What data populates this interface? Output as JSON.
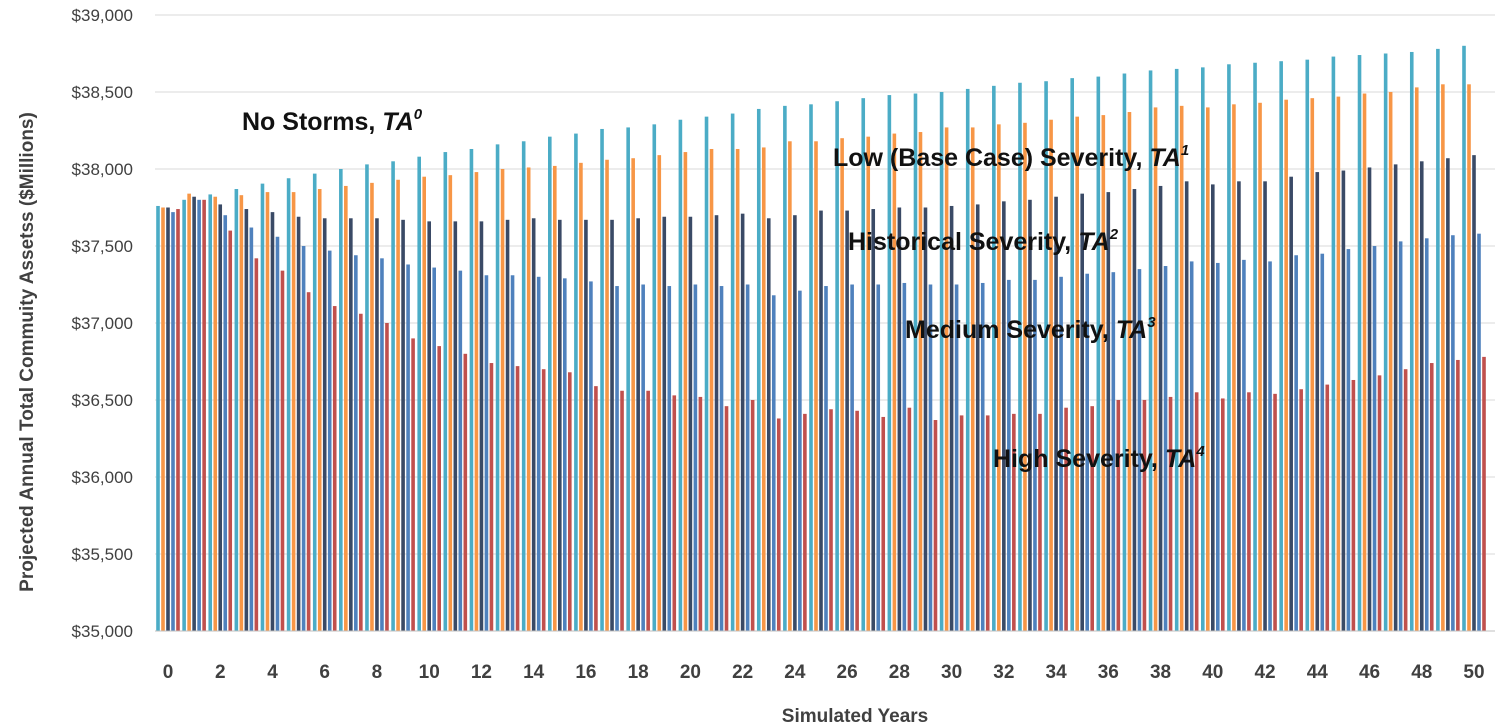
{
  "chart_data": {
    "type": "bar",
    "ylabel": "Projected Annual Total Commuity Assetss ($Millions)",
    "xlabel": "Simulated Years",
    "ylim": [
      35000,
      39000
    ],
    "yticks": [
      "$35,000",
      "$35,500",
      "$36,000",
      "$36,500",
      "$37,000",
      "$37,500",
      "$38,000",
      "$38,500",
      "$39,000"
    ],
    "ytick_values": [
      35000,
      35500,
      36000,
      36500,
      37000,
      37500,
      38000,
      38500,
      39000
    ],
    "x": [
      0,
      1,
      2,
      3,
      4,
      5,
      6,
      7,
      8,
      9,
      10,
      11,
      12,
      13,
      14,
      15,
      16,
      17,
      18,
      19,
      20,
      21,
      22,
      23,
      24,
      25,
      26,
      27,
      28,
      29,
      30,
      31,
      32,
      33,
      34,
      35,
      36,
      37,
      38,
      39,
      40,
      41,
      42,
      43,
      44,
      45,
      46,
      47,
      48,
      49,
      50
    ],
    "xtick_labels": [
      "0",
      "2",
      "4",
      "6",
      "8",
      "10",
      "12",
      "14",
      "16",
      "18",
      "20",
      "22",
      "24",
      "26",
      "28",
      "30",
      "32",
      "34",
      "36",
      "38",
      "40",
      "42",
      "44",
      "46",
      "48",
      "50"
    ],
    "xtick_values": [
      0,
      2,
      4,
      6,
      8,
      10,
      12,
      14,
      16,
      18,
      20,
      22,
      24,
      26,
      28,
      30,
      32,
      34,
      36,
      38,
      40,
      42,
      44,
      46,
      48,
      50
    ],
    "grid": true,
    "series": [
      {
        "name": "No Storms, TA",
        "sup": "0",
        "color": "#4bacc6",
        "values": [
          37760,
          37800,
          37835,
          37870,
          37905,
          37940,
          37970,
          38000,
          38030,
          38050,
          38080,
          38110,
          38130,
          38160,
          38180,
          38210,
          38230,
          38260,
          38270,
          38290,
          38320,
          38340,
          38360,
          38390,
          38410,
          38420,
          38440,
          38460,
          38480,
          38490,
          38500,
          38520,
          38540,
          38560,
          38570,
          38590,
          38600,
          38620,
          38640,
          38650,
          38660,
          38680,
          38690,
          38700,
          38710,
          38730,
          38740,
          38750,
          38760,
          38780,
          38800
        ]
      },
      {
        "name": "Low (Base Case) Severity, TA",
        "sup": "1",
        "color": "#f79646",
        "values": [
          37750,
          37840,
          37820,
          37830,
          37850,
          37850,
          37870,
          37890,
          37910,
          37930,
          37950,
          37960,
          37980,
          38000,
          38010,
          38020,
          38040,
          38060,
          38070,
          38090,
          38110,
          38130,
          38130,
          38140,
          38180,
          38180,
          38200,
          38210,
          38230,
          38240,
          38270,
          38270,
          38290,
          38300,
          38320,
          38340,
          38350,
          38370,
          38400,
          38410,
          38400,
          38420,
          38430,
          38450,
          38460,
          38470,
          38490,
          38500,
          38530,
          38550,
          38550
        ]
      },
      {
        "name": "Historical Severity, TA",
        "sup": "2",
        "color": "#3a4a66",
        "values": [
          37750,
          37820,
          37770,
          37740,
          37720,
          37690,
          37680,
          37680,
          37680,
          37670,
          37660,
          37660,
          37660,
          37670,
          37680,
          37670,
          37670,
          37670,
          37680,
          37690,
          37690,
          37700,
          37710,
          37680,
          37700,
          37730,
          37730,
          37740,
          37750,
          37750,
          37760,
          37770,
          37790,
          37800,
          37820,
          37840,
          37850,
          37870,
          37890,
          37920,
          37900,
          37920,
          37920,
          37950,
          37980,
          37990,
          38010,
          38030,
          38050,
          38070,
          38090
        ]
      },
      {
        "name": "Medium Severity, TA",
        "sup": "3",
        "color": "#4f81bd",
        "values": [
          37720,
          37800,
          37700,
          37620,
          37560,
          37500,
          37470,
          37440,
          37420,
          37380,
          37360,
          37340,
          37310,
          37310,
          37300,
          37290,
          37270,
          37240,
          37250,
          37240,
          37250,
          37240,
          37250,
          37180,
          37210,
          37240,
          37250,
          37250,
          37260,
          37250,
          37250,
          37260,
          37280,
          37280,
          37300,
          37320,
          37330,
          37350,
          37370,
          37400,
          37390,
          37410,
          37400,
          37440,
          37450,
          37480,
          37500,
          37530,
          37550,
          37570,
          37580
        ]
      },
      {
        "name": "High Severity, TA",
        "sup": "4",
        "color": "#c0504d",
        "values": [
          37740,
          37800,
          37600,
          37420,
          37340,
          37200,
          37110,
          37060,
          37000,
          36900,
          36850,
          36800,
          36740,
          36720,
          36700,
          36680,
          36590,
          36560,
          36560,
          36530,
          36520,
          36460,
          36500,
          36380,
          36410,
          36440,
          36430,
          36390,
          36450,
          36370,
          36400,
          36400,
          36410,
          36410,
          36450,
          36460,
          36500,
          36500,
          36520,
          36550,
          36510,
          36550,
          36540,
          36570,
          36600,
          36630,
          36660,
          36700,
          36740,
          36760,
          36780
        ]
      }
    ],
    "series_labels": [
      {
        "text": "No Storms, ",
        "ital": "TA",
        "sup": "0"
      },
      {
        "text": "Low (Base Case) Severity, ",
        "ital": "TA",
        "sup": "1"
      },
      {
        "text": "Historical Severity, ",
        "ital": "TA",
        "sup": "2"
      },
      {
        "text": "Medium Severity, ",
        "ital": "TA",
        "sup": "3"
      },
      {
        "text": "High Severity, ",
        "ital": "TA",
        "sup": "4"
      }
    ]
  }
}
